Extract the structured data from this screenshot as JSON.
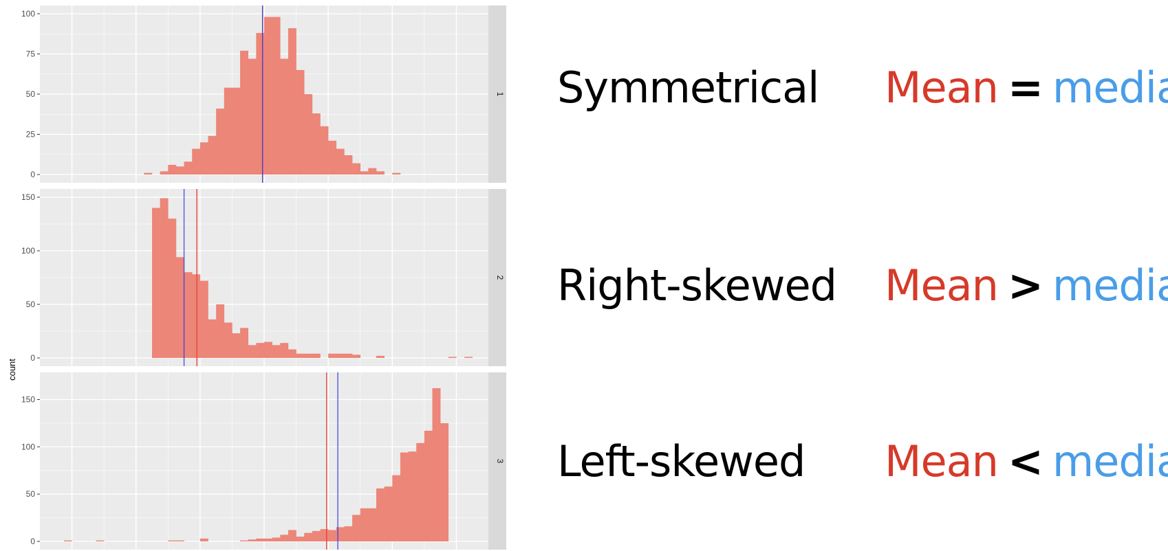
{
  "chart_data": {
    "type": "bar",
    "ylabel": "count",
    "xlabel": "",
    "colors": {
      "bars": "#ec8678",
      "mean": "#e8433a",
      "median": "#3b3bdc",
      "panel": "#ebebeb",
      "strip": "#d9d9d9"
    },
    "x_range": [
      -1,
      13
    ],
    "bin_width": 0.25,
    "panels": [
      {
        "facet_label": "1",
        "ylim": [
          0,
          100
        ],
        "yticks": [
          0,
          25,
          50,
          75,
          100
        ],
        "x_start": 2.25,
        "counts": [
          1,
          0,
          2,
          6,
          5,
          8,
          16,
          20,
          24,
          41,
          54,
          54,
          77,
          72,
          88,
          98,
          98,
          72,
          91,
          65,
          50,
          38,
          30,
          21,
          16,
          12,
          7,
          2,
          4,
          2,
          0,
          1
        ],
        "mean": 5.95,
        "median": 5.95
      },
      {
        "facet_label": "2",
        "ylim": [
          0,
          150
        ],
        "yticks": [
          0,
          50,
          100,
          150
        ],
        "x_start": 2.5,
        "counts": [
          140,
          149,
          130,
          94,
          80,
          78,
          72,
          36,
          50,
          33,
          23,
          28,
          12,
          14,
          15,
          12,
          14,
          8,
          4,
          4,
          4,
          0,
          4,
          4,
          4,
          3,
          0,
          0,
          2,
          0,
          0,
          0,
          0,
          0,
          0,
          0,
          0,
          1,
          0,
          1,
          0,
          0,
          0,
          0,
          0,
          1
        ],
        "mean": 3.9,
        "median": 3.5
      },
      {
        "facet_label": "3",
        "ylim": [
          0,
          170
        ],
        "yticks": [
          0,
          50,
          100,
          150
        ],
        "x_start": -0.25,
        "counts": [
          1,
          0,
          0,
          0,
          1,
          0,
          0,
          0,
          0,
          0,
          0,
          0,
          0,
          1,
          1,
          0,
          0,
          3,
          0,
          0,
          0,
          0,
          1,
          2,
          3,
          3,
          4,
          7,
          12,
          5,
          9,
          11,
          13,
          12,
          15,
          16,
          28,
          35,
          35,
          56,
          58,
          70,
          94,
          95,
          104,
          117,
          162,
          125
        ],
        "mean": 7.95,
        "median": 8.3
      }
    ]
  },
  "annotations": [
    {
      "name": "Symmetrical",
      "mean_word": "Mean",
      "operator": "=",
      "median_word": "median"
    },
    {
      "name": "Right-skewed",
      "mean_word": "Mean",
      "operator": ">",
      "median_word": "median"
    },
    {
      "name": "Left-skewed",
      "mean_word": "Mean",
      "operator": "<",
      "median_word": "median"
    }
  ]
}
